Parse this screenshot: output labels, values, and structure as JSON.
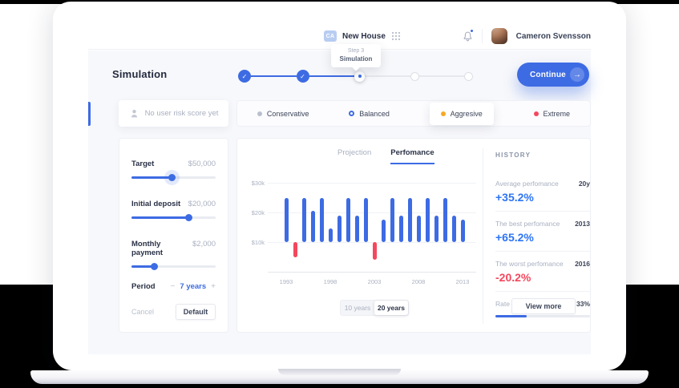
{
  "topbar": {
    "project_badge": "CA",
    "project_name": "New House",
    "user_name": "Cameron Svensson"
  },
  "tooltip": {
    "step": "Step 3",
    "name": "Simulation"
  },
  "header": {
    "title": "Simulation",
    "continue_label": "Continue",
    "continue_arrow": "→",
    "steps": [
      {
        "state": "done"
      },
      {
        "state": "done"
      },
      {
        "state": "current"
      },
      {
        "state": "todo"
      },
      {
        "state": "todo"
      }
    ]
  },
  "risk": {
    "empty_label": "No user risk score yet",
    "options": [
      {
        "label": "Conservative",
        "marker": "dot",
        "color": "#b9c0cd",
        "selected": false
      },
      {
        "label": "Balanced",
        "marker": "ring",
        "color": "#3d6be3",
        "selected": false
      },
      {
        "label": "Aggresive",
        "marker": "dot",
        "color": "#f7a823",
        "selected": true
      },
      {
        "label": "Extreme",
        "marker": "dot",
        "color": "#f4475d",
        "selected": false
      }
    ]
  },
  "params": {
    "sliders": [
      {
        "label": "Target",
        "value": "$50,000",
        "percent": 48,
        "halo": true
      },
      {
        "label": "Initial deposit",
        "value": "$20,000",
        "percent": 68,
        "halo": false
      },
      {
        "label": "Monthly payment",
        "value": "$2,000",
        "percent": 27,
        "halo": false
      }
    ],
    "period": {
      "label": "Period",
      "minus": "−",
      "value": "7 years",
      "plus": "+"
    },
    "cancel_label": "Cancel",
    "default_label": "Default"
  },
  "chart": {
    "tabs": [
      {
        "label": "Projection",
        "active": false
      },
      {
        "label": "Perfomance",
        "active": true
      }
    ],
    "range_toggle": [
      {
        "label": "10 years",
        "active": false
      },
      {
        "label": "20 years",
        "active": true
      }
    ]
  },
  "chart_data": {
    "type": "bar",
    "x": [
      1993,
      1994,
      1995,
      1996,
      1997,
      1998,
      1999,
      2000,
      2001,
      2002,
      2003,
      2004,
      2005,
      2006,
      2007,
      2008,
      2009,
      2010,
      2011,
      2012,
      2013
    ],
    "values": [
      25,
      5,
      25,
      20.5,
      25,
      14.5,
      19,
      25,
      19,
      25,
      4,
      17.5,
      25,
      19,
      25,
      19,
      25,
      19,
      25,
      19,
      17.5
    ],
    "baseline": 10,
    "unit": "$k",
    "bar_color": "#3d6be3",
    "negative_color": "#f4475d",
    "negative_years": [
      1994,
      2003
    ],
    "yticks": [
      "$30k",
      "$20k",
      "$10k"
    ],
    "ytick_values": [
      30,
      20,
      10
    ],
    "xticks": [
      "1993",
      "1998",
      "2003",
      "2008",
      "2013"
    ],
    "xtick_indices": [
      0,
      5,
      10,
      15,
      20
    ],
    "ylim": [
      0,
      32
    ],
    "grid": true,
    "legend": "none"
  },
  "history": {
    "title": "HISTORY",
    "rows": [
      {
        "label": "Average perfomance",
        "meta": "20y",
        "value": "+35.2%",
        "color": "#2d74f4"
      },
      {
        "label": "The best perfomance",
        "meta": "2013",
        "value": "+65.2%",
        "color": "#2d74f4"
      },
      {
        "label": "The worst perfomance",
        "meta": "2016",
        "value": "-20.2%",
        "color": "#f4475d"
      }
    ],
    "rate": {
      "label": "Rate",
      "value": "33%",
      "percent": 33
    },
    "view_more_label": "View more"
  },
  "colors": {
    "accent_blue": "#3d6be3",
    "value_blue": "#2d74f4",
    "red": "#f4475d",
    "yellow": "#f7a823",
    "muted_dot": "#b9c0cd"
  }
}
